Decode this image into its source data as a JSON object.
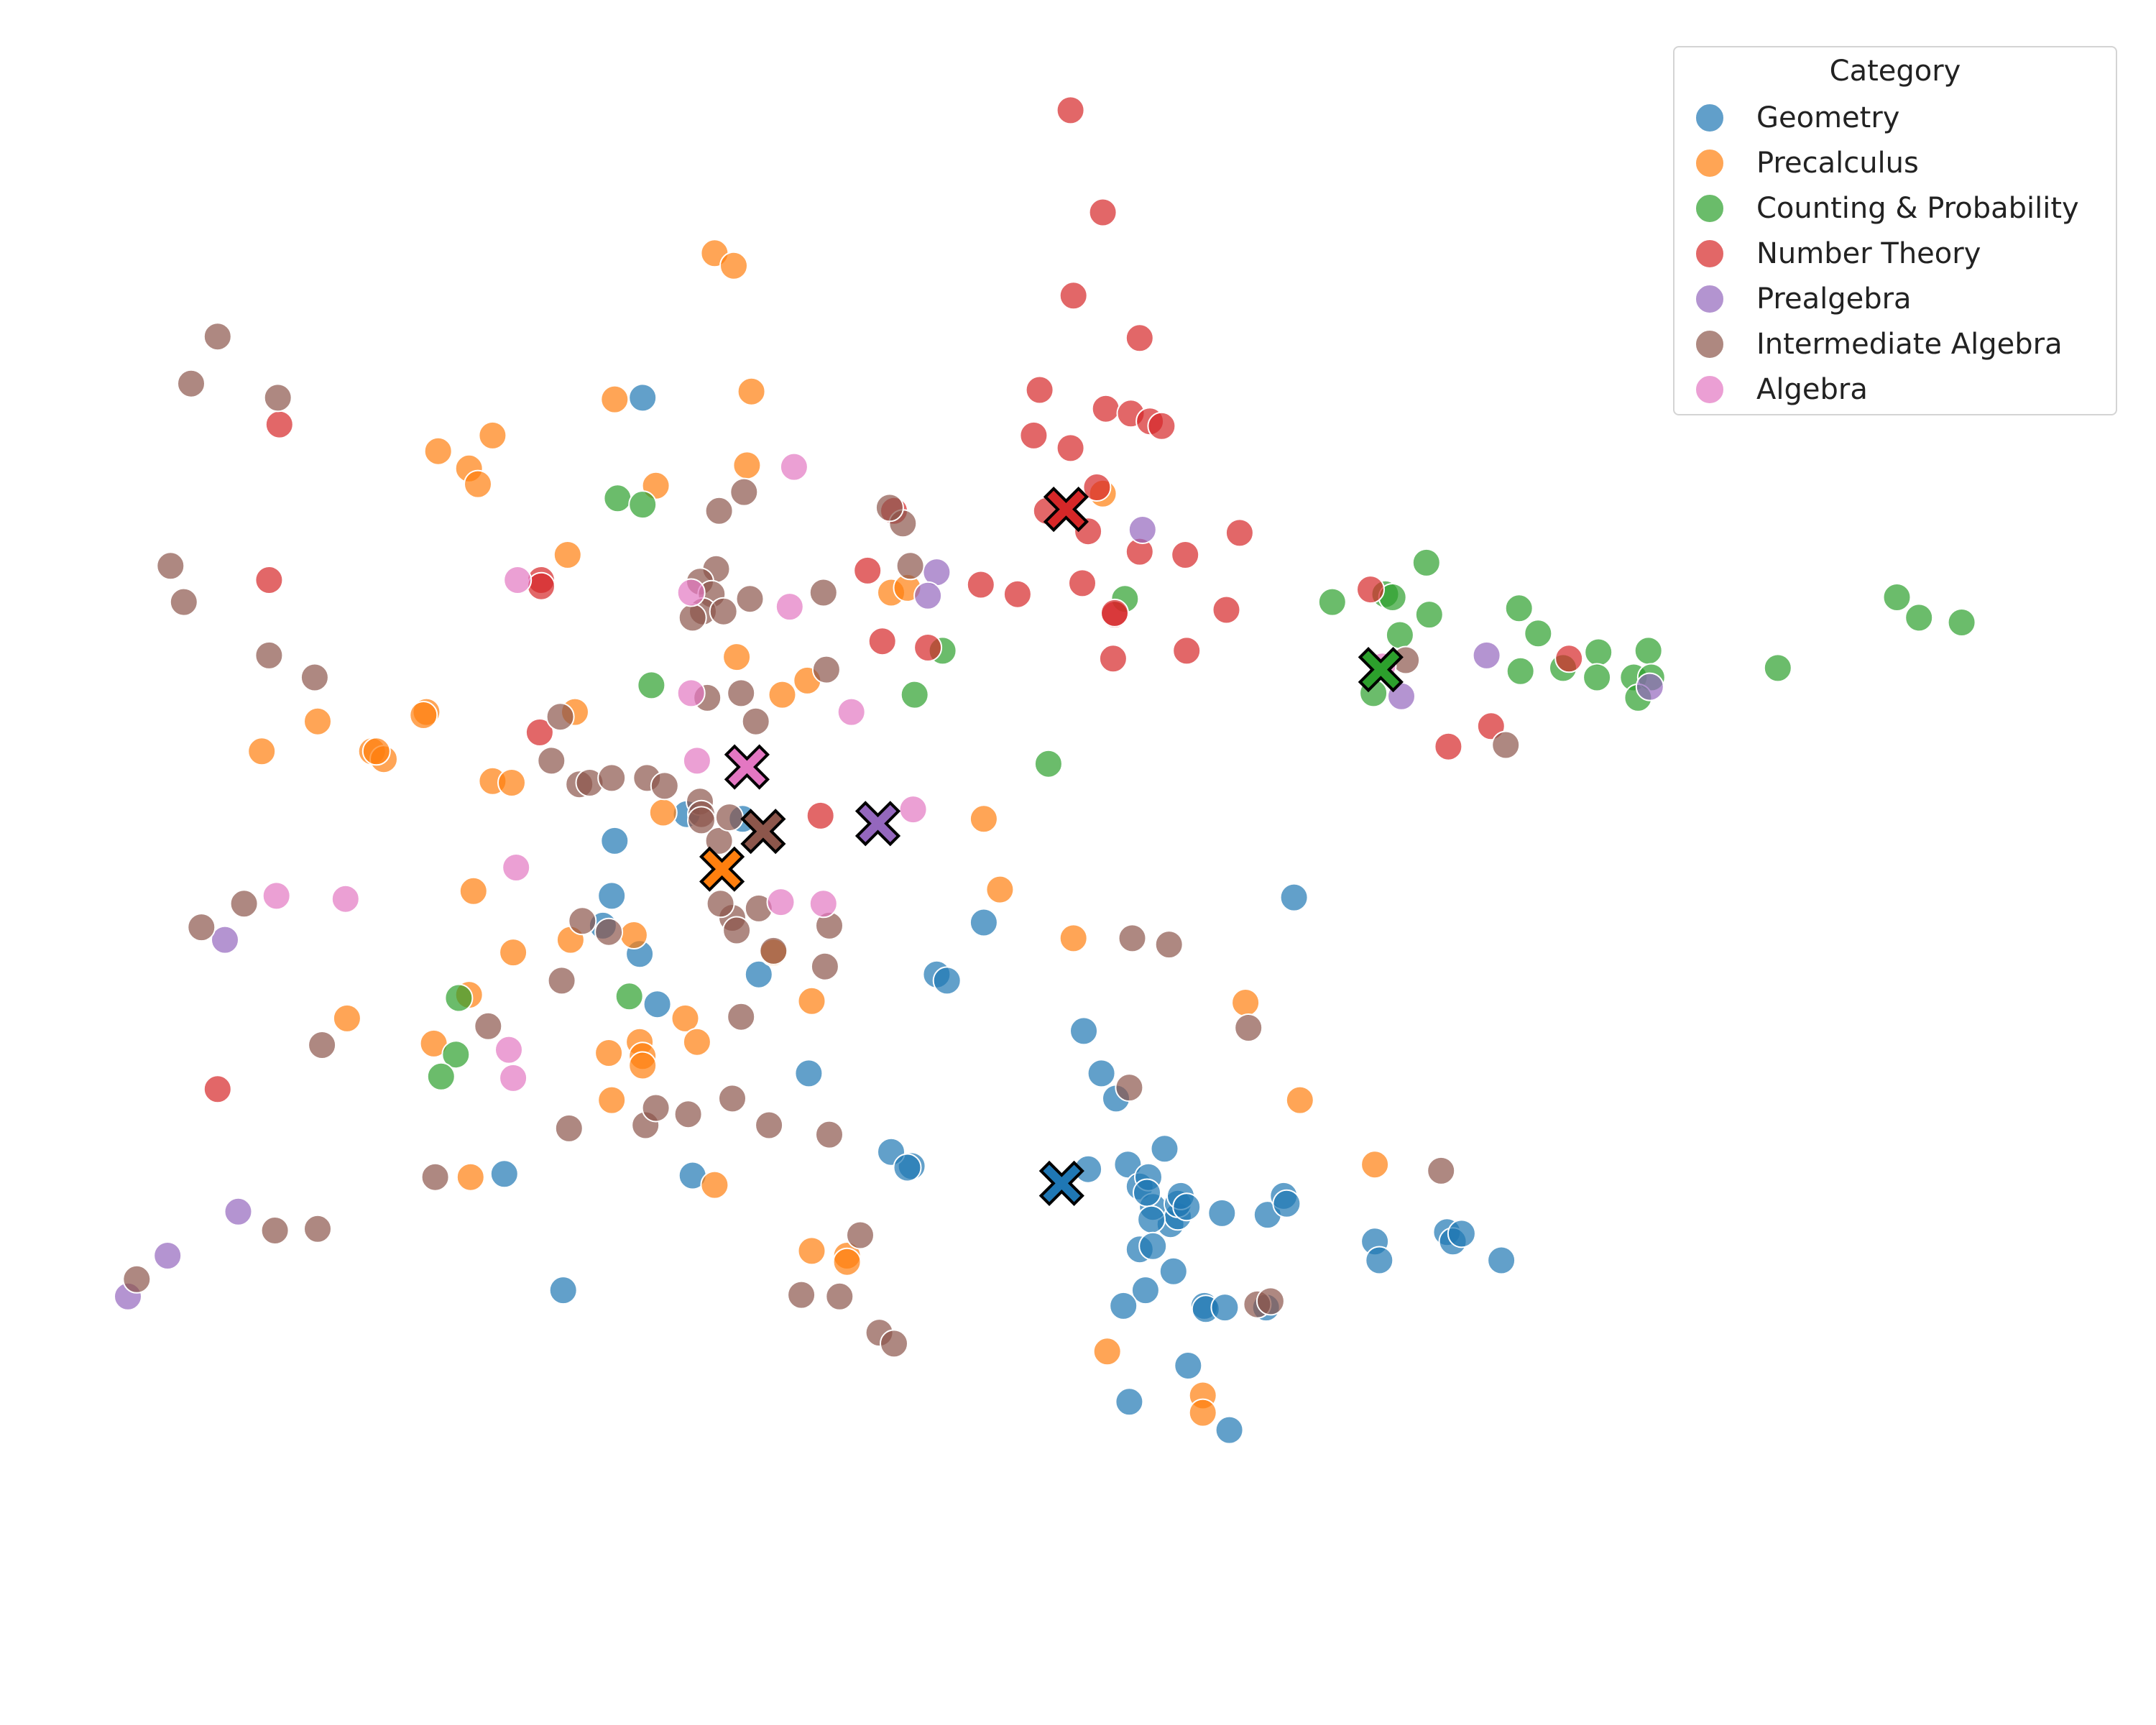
{
  "chart_data": {
    "type": "scatter",
    "xlim": [
      -5.0,
      8.0
    ],
    "ylim": [
      -4.5,
      5.5
    ],
    "grid": false,
    "axes_visible": false,
    "legend": {
      "title": "Category",
      "placement": "top-right"
    },
    "centroid_marker": "X",
    "series": [
      {
        "name": "Geometry",
        "color": "#1f77b4",
        "points": [
          [
            -1.5,
            3.65
          ],
          [
            -1.2,
            1.0
          ],
          [
            -0.82,
            0.97
          ],
          [
            -1.69,
            0.83
          ],
          [
            -1.71,
            0.48
          ],
          [
            -1.52,
            0.11
          ],
          [
            -1.77,
            0.29
          ],
          [
            -1.4,
            -0.21
          ],
          [
            -2.44,
            -1.29
          ],
          [
            -2.04,
            -2.03
          ],
          [
            -1.16,
            -1.3
          ],
          [
            -0.37,
            -0.65
          ],
          [
            -0.71,
            -0.02
          ],
          [
            0.33,
            -1.24
          ],
          [
            0.5,
            -0.02
          ],
          [
            0.57,
            -0.06
          ],
          [
            0.82,
            0.31
          ],
          [
            1.5,
            -0.38
          ],
          [
            1.62,
            -0.65
          ],
          [
            1.72,
            -0.81
          ],
          [
            1.53,
            -1.26
          ],
          [
            1.8,
            -1.23
          ],
          [
            1.88,
            -1.37
          ],
          [
            1.88,
            -1.77
          ],
          [
            1.92,
            -2.03
          ],
          [
            2.11,
            -1.91
          ],
          [
            2.09,
            -1.61
          ],
          [
            2.05,
            -1.13
          ],
          [
            1.97,
            -1.5
          ],
          [
            2.14,
            -1.56
          ],
          [
            1.94,
            -1.31
          ],
          [
            1.93,
            -1.41
          ],
          [
            1.96,
            -1.58
          ],
          [
            1.97,
            -1.75
          ],
          [
            2.14,
            -1.48
          ],
          [
            2.16,
            -1.43
          ],
          [
            2.2,
            -1.5
          ],
          [
            2.44,
            -1.54
          ],
          [
            2.75,
            -1.55
          ],
          [
            2.86,
            -1.43
          ],
          [
            2.88,
            -1.48
          ],
          [
            2.93,
            0.47
          ],
          [
            3.48,
            -1.72
          ],
          [
            3.51,
            -1.84
          ],
          [
            3.97,
            -1.66
          ],
          [
            4.01,
            -1.72
          ],
          [
            4.07,
            -1.67
          ],
          [
            4.34,
            -1.84
          ],
          [
            1.77,
            -2.13
          ],
          [
            2.32,
            -2.13
          ],
          [
            2.33,
            -2.15
          ],
          [
            2.46,
            -2.14
          ],
          [
            2.74,
            -2.14
          ],
          [
            2.21,
            -2.51
          ],
          [
            1.81,
            -2.74
          ],
          [
            2.49,
            -2.92
          ],
          [
            0.19,
            -1.15
          ],
          [
            0.3,
            -1.25
          ]
        ]
      },
      {
        "name": "Precalculus",
        "color": "#ff7f0e",
        "points": [
          [
            -1.01,
            4.57
          ],
          [
            -0.88,
            4.49
          ],
          [
            -1.69,
            3.64
          ],
          [
            -0.76,
            3.69
          ],
          [
            -2.52,
            3.41
          ],
          [
            -2.89,
            3.31
          ],
          [
            -2.68,
            3.2
          ],
          [
            -2.62,
            3.1
          ],
          [
            -1.41,
            3.09
          ],
          [
            -0.79,
            3.22
          ],
          [
            -2.01,
            2.65
          ],
          [
            -0.86,
            2.0
          ],
          [
            -0.38,
            1.85
          ],
          [
            -0.55,
            1.76
          ],
          [
            -1.96,
            1.65
          ],
          [
            -2.97,
            1.65
          ],
          [
            -2.99,
            1.63
          ],
          [
            -3.71,
            1.59
          ],
          [
            -4.09,
            1.4
          ],
          [
            -3.34,
            1.4
          ],
          [
            -3.26,
            1.35
          ],
          [
            -3.31,
            1.4
          ],
          [
            -2.52,
            1.21
          ],
          [
            -2.39,
            1.2
          ],
          [
            -1.36,
            1.01
          ],
          [
            0.82,
            0.97
          ],
          [
            0.93,
            0.52
          ],
          [
            1.43,
            0.21
          ],
          [
            -2.65,
            0.51
          ],
          [
            -1.56,
            0.23
          ],
          [
            -1.99,
            0.2
          ],
          [
            -2.38,
            0.12
          ],
          [
            -0.61,
            0.12
          ],
          [
            -2.68,
            -0.15
          ],
          [
            -3.51,
            -0.3
          ],
          [
            -1.21,
            -0.3
          ],
          [
            -1.52,
            -0.45
          ],
          [
            -1.5,
            -0.54
          ],
          [
            -1.5,
            -0.6
          ],
          [
            -1.73,
            -0.52
          ],
          [
            -1.13,
            -0.45
          ],
          [
            -2.92,
            -0.46
          ],
          [
            -0.35,
            -0.19
          ],
          [
            2.6,
            -0.2
          ],
          [
            1.66,
            -2.42
          ],
          [
            2.97,
            -0.82
          ],
          [
            3.48,
            -1.23
          ],
          [
            -1.71,
            -0.82
          ],
          [
            -2.67,
            -1.31
          ],
          [
            -1.01,
            -1.36
          ],
          [
            -0.11,
            -1.81
          ],
          [
            -0.35,
            -1.78
          ],
          [
            -0.11,
            -1.85
          ],
          [
            2.31,
            -2.7
          ],
          [
            2.31,
            -2.81
          ],
          [
            0.19,
            2.41
          ],
          [
            1.63,
            3.04
          ],
          [
            0.3,
            2.44
          ]
        ]
      },
      {
        "name": "Counting & Probability",
        "color": "#2ca02c",
        "points": [
          [
            -1.67,
            3.01
          ],
          [
            -1.5,
            2.97
          ],
          [
            1.78,
            2.37
          ],
          [
            3.19,
            2.35
          ],
          [
            3.55,
            2.4
          ],
          [
            3.6,
            2.38
          ],
          [
            3.83,
            2.6
          ],
          [
            3.85,
            2.27
          ],
          [
            3.65,
            2.14
          ],
          [
            4.46,
            2.31
          ],
          [
            4.59,
            2.15
          ],
          [
            5.0,
            2.03
          ],
          [
            5.34,
            2.04
          ],
          [
            4.47,
            1.91
          ],
          [
            4.76,
            1.93
          ],
          [
            4.99,
            1.87
          ],
          [
            5.24,
            1.87
          ],
          [
            5.36,
            1.87
          ],
          [
            5.27,
            1.74
          ],
          [
            6.22,
            1.93
          ],
          [
            7.03,
            2.38
          ],
          [
            7.18,
            2.25
          ],
          [
            7.47,
            2.22
          ],
          [
            3.47,
            1.77
          ],
          [
            0.54,
            2.04
          ],
          [
            0.35,
            1.76
          ],
          [
            -1.44,
            1.82
          ],
          [
            1.26,
            1.32
          ],
          [
            -2.75,
            -0.17
          ],
          [
            -1.59,
            -0.16
          ],
          [
            -2.77,
            -0.53
          ],
          [
            -2.87,
            -0.67
          ]
        ]
      },
      {
        "name": "Number Theory",
        "color": "#d62728",
        "points": [
          [
            1.41,
            5.48
          ],
          [
            1.63,
            4.83
          ],
          [
            1.43,
            4.3
          ],
          [
            1.88,
            4.03
          ],
          [
            1.2,
            3.7
          ],
          [
            1.65,
            3.58
          ],
          [
            1.82,
            3.55
          ],
          [
            1.95,
            3.5
          ],
          [
            2.03,
            3.47
          ],
          [
            1.16,
            3.41
          ],
          [
            1.41,
            3.33
          ],
          [
            1.59,
            3.08
          ],
          [
            0.21,
            2.93
          ],
          [
            1.25,
            2.93
          ],
          [
            1.53,
            2.8
          ],
          [
            1.88,
            2.67
          ],
          [
            2.19,
            2.65
          ],
          [
            2.56,
            2.79
          ],
          [
            1.05,
            2.4
          ],
          [
            0.8,
            2.46
          ],
          [
            1.49,
            2.47
          ],
          [
            1.71,
            2.27
          ],
          [
            1.71,
            2.28
          ],
          [
            2.47,
            2.3
          ],
          [
            0.44,
            2.06
          ],
          [
            0.13,
            2.1
          ],
          [
            1.7,
            1.99
          ],
          [
            2.2,
            2.04
          ],
          [
            3.45,
            2.43
          ],
          [
            4.8,
            1.99
          ],
          [
            4.27,
            1.56
          ],
          [
            3.98,
            1.43
          ],
          [
            -3.97,
            3.48
          ],
          [
            -4.04,
            2.49
          ],
          [
            -2.19,
            2.49
          ],
          [
            -2.19,
            2.45
          ],
          [
            -2.2,
            1.52
          ],
          [
            -0.29,
            0.99
          ],
          [
            -4.39,
            -0.75
          ],
          [
            0.03,
            2.55
          ]
        ]
      },
      {
        "name": "Prealgebra",
        "color": "#9467bd",
        "points": [
          [
            1.9,
            2.81
          ],
          [
            0.5,
            2.54
          ],
          [
            0.44,
            2.39
          ],
          [
            4.24,
            2.01
          ],
          [
            3.66,
            1.75
          ],
          [
            5.35,
            1.81
          ],
          [
            -4.34,
            0.2
          ],
          [
            -4.25,
            -1.53
          ],
          [
            -4.73,
            -1.81
          ],
          [
            -5.0,
            -2.07
          ]
        ]
      },
      {
        "name": "Intermediate Algebra",
        "color": "#8c564b",
        "points": [
          [
            -4.39,
            4.04
          ],
          [
            -4.57,
            3.74
          ],
          [
            -3.98,
            3.65
          ],
          [
            -0.81,
            3.05
          ],
          [
            -0.98,
            2.93
          ],
          [
            -4.71,
            2.58
          ],
          [
            -4.62,
            2.35
          ],
          [
            -1.0,
            2.56
          ],
          [
            -1.11,
            2.48
          ],
          [
            -1.03,
            2.4
          ],
          [
            -0.77,
            2.37
          ],
          [
            -0.27,
            2.41
          ],
          [
            0.32,
            2.58
          ],
          [
            0.27,
            2.85
          ],
          [
            0.18,
            2.95
          ],
          [
            -1.09,
            2.29
          ],
          [
            -0.95,
            2.29
          ],
          [
            -1.16,
            2.25
          ],
          [
            -4.04,
            2.01
          ],
          [
            -3.73,
            1.87
          ],
          [
            -0.83,
            1.77
          ],
          [
            -1.06,
            1.74
          ],
          [
            -0.25,
            1.92
          ],
          [
            -2.06,
            1.62
          ],
          [
            -0.73,
            1.59
          ],
          [
            -2.12,
            1.34
          ],
          [
            -1.93,
            1.19
          ],
          [
            -1.86,
            1.2
          ],
          [
            -1.71,
            1.23
          ],
          [
            -1.47,
            1.23
          ],
          [
            -1.35,
            1.18
          ],
          [
            3.69,
            1.98
          ],
          [
            4.37,
            1.44
          ],
          [
            -1.11,
            1.08
          ],
          [
            -1.1,
            1.0
          ],
          [
            -1.1,
            0.96
          ],
          [
            -0.98,
            0.83
          ],
          [
            -0.91,
            0.98
          ],
          [
            -4.5,
            0.28
          ],
          [
            -4.21,
            0.43
          ],
          [
            -1.91,
            0.32
          ],
          [
            -1.73,
            0.25
          ],
          [
            -0.89,
            0.34
          ],
          [
            -0.97,
            0.43
          ],
          [
            -0.61,
            0.13
          ],
          [
            -0.86,
            0.26
          ],
          [
            -0.71,
            0.4
          ],
          [
            -0.23,
            0.29
          ],
          [
            -0.26,
            0.03
          ],
          [
            1.83,
            0.21
          ],
          [
            2.08,
            0.17
          ],
          [
            -2.05,
            -0.06
          ],
          [
            -3.68,
            -0.47
          ],
          [
            -0.83,
            -0.29
          ],
          [
            -2.55,
            -0.35
          ],
          [
            -0.89,
            -0.81
          ],
          [
            -0.64,
            -0.98
          ],
          [
            -0.23,
            -1.04
          ],
          [
            1.81,
            -0.74
          ],
          [
            2.62,
            -0.36
          ],
          [
            3.93,
            -1.27
          ],
          [
            -2.91,
            -1.31
          ],
          [
            -0.02,
            -1.68
          ],
          [
            0.11,
            -2.3
          ],
          [
            0.21,
            -2.37
          ],
          [
            -3.71,
            -1.64
          ],
          [
            -4.0,
            -1.65
          ],
          [
            -4.94,
            -1.96
          ],
          [
            -2.0,
            -1.0
          ],
          [
            -1.48,
            -0.98
          ],
          [
            -1.19,
            -0.91
          ],
          [
            -1.41,
            -0.87
          ],
          [
            -0.16,
            -2.07
          ],
          [
            2.68,
            -2.12
          ],
          [
            2.77,
            -2.1
          ],
          [
            -0.42,
            -2.06
          ]
        ]
      },
      {
        "name": "Algebra",
        "color": "#e377c2",
        "points": [
          [
            -0.47,
            3.21
          ],
          [
            -2.35,
            2.49
          ],
          [
            -1.17,
            2.41
          ],
          [
            -0.5,
            2.32
          ],
          [
            3.53,
            1.94
          ],
          [
            -1.17,
            1.77
          ],
          [
            -0.08,
            1.65
          ],
          [
            -1.13,
            1.34
          ],
          [
            -2.36,
            0.66
          ],
          [
            -3.99,
            0.48
          ],
          [
            -3.52,
            0.46
          ],
          [
            -0.56,
            0.44
          ],
          [
            -0.27,
            0.43
          ],
          [
            0.34,
            1.03
          ],
          [
            -2.41,
            -0.5
          ],
          [
            -2.38,
            -0.68
          ]
        ]
      }
    ],
    "centroids": [
      {
        "series": "Geometry",
        "color": "#1f77b4",
        "point": [
          1.35,
          -1.35
        ]
      },
      {
        "series": "Precalculus",
        "color": "#ff7f0e",
        "point": [
          -0.96,
          0.65
        ]
      },
      {
        "series": "Counting & Probability",
        "color": "#2ca02c",
        "point": [
          3.52,
          1.92
        ]
      },
      {
        "series": "Number Theory",
        "color": "#d62728",
        "point": [
          1.38,
          2.94
        ]
      },
      {
        "series": "Prealgebra",
        "color": "#9467bd",
        "point": [
          0.1,
          0.94
        ]
      },
      {
        "series": "Intermediate Algebra",
        "color": "#8c564b",
        "point": [
          -0.68,
          0.89
        ]
      },
      {
        "series": "Algebra",
        "color": "#e377c2",
        "point": [
          -0.79,
          1.3
        ]
      }
    ]
  }
}
